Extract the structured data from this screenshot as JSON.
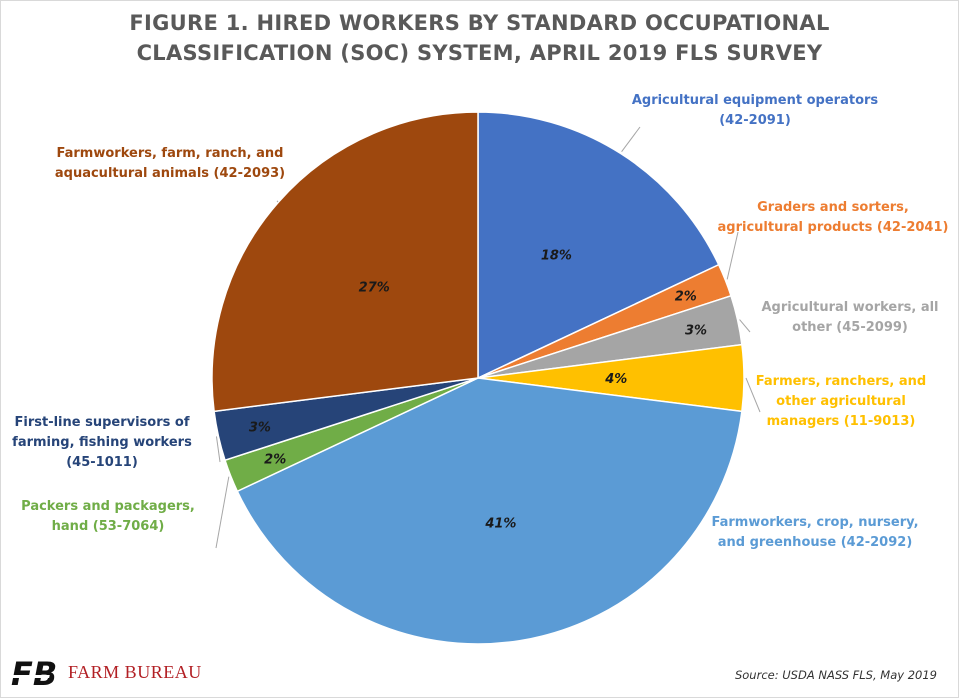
{
  "title_line1": "FIGURE 1. HIRED WORKERS BY STANDARD OCCUPATIONAL",
  "title_line2": "CLASSIFICATION (SOC) SYSTEM, APRIL 2019 FLS SURVEY",
  "source": "Source: USDA NASS FLS, May 2019",
  "logo_text": "FARM BUREAU",
  "logo_mark": "FB",
  "chart_data": {
    "type": "pie",
    "title": "FIGURE 1. HIRED WORKERS BY STANDARD OCCUPATIONAL CLASSIFICATION (SOC) SYSTEM, APRIL 2019 FLS SURVEY",
    "start_angle_deg": 0,
    "direction": "clockwise",
    "slices": [
      {
        "label": [
          "Agricultural equipment operators",
          "(42-2091)"
        ],
        "value": 18,
        "value_label": "18%",
        "color": "#4472c4",
        "label_color": "#4472c4"
      },
      {
        "label": [
          "Graders and sorters,",
          "agricultural products (42-2041)"
        ],
        "value": 2,
        "value_label": "2%",
        "color": "#ed7d31",
        "label_color": "#ed7d31"
      },
      {
        "label": [
          "Agricultural workers, all",
          "other (45-2099)"
        ],
        "value": 3,
        "value_label": "3%",
        "color": "#a5a5a5",
        "label_color": "#a5a5a5"
      },
      {
        "label": [
          "Farmers, ranchers, and",
          "other agricultural",
          "managers (11-9013)"
        ],
        "value": 4,
        "value_label": "4%",
        "color": "#ffc000",
        "label_color": "#ffc000"
      },
      {
        "label": [
          "Farmworkers, crop, nursery,",
          "and greenhouse (42-2092)"
        ],
        "value": 41,
        "value_label": "41%",
        "color": "#5b9bd5",
        "label_color": "#5b9bd5"
      },
      {
        "label": [
          "Packers and packagers,",
          "hand (53-7064)"
        ],
        "value": 2,
        "value_label": "2%",
        "color": "#70ad47",
        "label_color": "#70ad47"
      },
      {
        "label": [
          "First-line supervisors of",
          "farming, fishing workers",
          "(45-1011)"
        ],
        "value": 3,
        "value_label": "3%",
        "color": "#264478",
        "label_color": "#264478"
      },
      {
        "label": [
          "Farmworkers, farm, ranch, and",
          "aquacultural animals (42-2093)"
        ],
        "value": 27,
        "value_label": "27%",
        "color": "#9e480e",
        "label_color": "#9e480e"
      }
    ]
  }
}
